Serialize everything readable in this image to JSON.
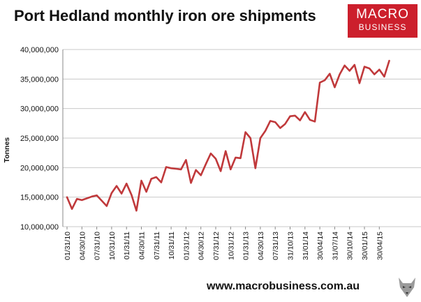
{
  "header": {
    "title": "Port Hedland monthly iron ore shipments",
    "logo_line1": "MACRO",
    "logo_line2": "BUSINESS"
  },
  "footer": {
    "url": "www.macrobusiness.com.au"
  },
  "colors": {
    "line": "#c0393b",
    "logo_bg": "#cc1f2c",
    "grid": "#c8c8c8"
  },
  "icons": {
    "brand_mark": "wolf-icon"
  },
  "chart_data": {
    "type": "line",
    "ylabel": "Tonnes",
    "ylim": [
      10000000,
      40000000
    ],
    "yticks": [
      "10,000,000",
      "15,000,000",
      "20,000,000",
      "25,000,000",
      "30,000,000",
      "35,000,000",
      "40,000,000"
    ],
    "grid": "horizontal",
    "xtick_labels": [
      "01/31/10",
      "04/30/10",
      "07/31/10",
      "10/31/10",
      "01/31/11",
      "04/30/11",
      "07/31/11",
      "10/31/11",
      "01/31/12",
      "04/30/12",
      "07/31/12",
      "10/31/12",
      "01/31/13",
      "04/30/13",
      "07/31/13",
      "31/10/13",
      "31/01/14",
      "30/04/14",
      "31/07/14",
      "30/10/14",
      "30/01/15",
      "30/04/15"
    ],
    "series": [
      {
        "values": [
          15000000,
          13000000,
          14700000,
          14500000,
          14800000,
          15100000,
          15300000,
          14400000,
          13500000,
          15700000,
          16900000,
          15600000,
          17300000,
          15400000,
          12700000,
          17800000,
          15900000,
          18100000,
          18400000,
          17500000,
          20100000,
          19900000,
          19800000,
          19700000,
          21300000,
          17400000,
          19600000,
          18700000,
          20600000,
          22400000,
          21500000,
          19400000,
          22800000,
          19700000,
          21700000,
          21600000,
          26000000,
          25000000,
          19900000,
          25000000,
          26200000,
          27900000,
          27700000,
          26700000,
          27400000,
          28700000,
          28800000,
          28000000,
          29400000,
          28100000,
          27800000,
          34400000,
          34800000,
          35900000,
          33600000,
          35800000,
          37300000,
          36400000,
          37400000,
          34300000,
          37100000,
          36800000,
          35800000,
          36600000,
          35400000,
          38100000
        ]
      }
    ]
  }
}
